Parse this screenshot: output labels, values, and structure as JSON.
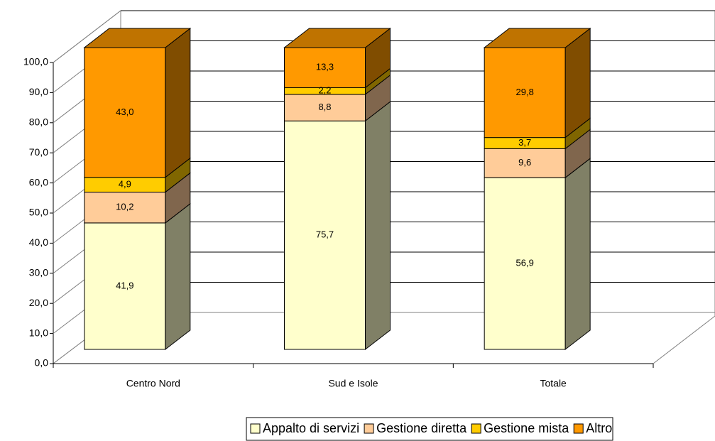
{
  "chart_data": {
    "type": "bar3d_stacked",
    "categories": [
      "Centro Nord",
      "Sud e Isole",
      "Totale"
    ],
    "series": [
      {
        "name": "Appalto di servizi",
        "color": "#FFFFCC",
        "values": [
          41.9,
          75.7,
          56.9
        ],
        "value_labels": [
          "41,9",
          "75,7",
          "56,9"
        ]
      },
      {
        "name": "Gestione diretta",
        "color": "#FFCC99",
        "values": [
          10.2,
          8.8,
          9.6
        ],
        "value_labels": [
          "10,2",
          "8,8",
          "9,6"
        ]
      },
      {
        "name": "Gestione mista",
        "color": "#FFCC00",
        "values": [
          4.9,
          2.2,
          3.7
        ],
        "value_labels": [
          "4,9",
          "2,2",
          "3,7"
        ]
      },
      {
        "name": "Altro",
        "color": "#FF9900",
        "values": [
          43.0,
          13.3,
          29.8
        ],
        "value_labels": [
          "43,0",
          "13,3",
          "29,8"
        ]
      }
    ],
    "ylim": [
      0,
      100
    ],
    "yticks": [
      {
        "value": 0,
        "label": "0,0"
      },
      {
        "value": 10,
        "label": "10,0"
      },
      {
        "value": 20,
        "label": "20,0"
      },
      {
        "value": 30,
        "label": "30,0"
      },
      {
        "value": 40,
        "label": "40,0"
      },
      {
        "value": 50,
        "label": "50,0"
      },
      {
        "value": 60,
        "label": "60,0"
      },
      {
        "value": 70,
        "label": "70,0"
      },
      {
        "value": 80,
        "label": "80,0"
      },
      {
        "value": 90,
        "label": "90,0"
      },
      {
        "value": 100,
        "label": "100,0"
      }
    ],
    "grid": true,
    "legend": "bottom"
  }
}
